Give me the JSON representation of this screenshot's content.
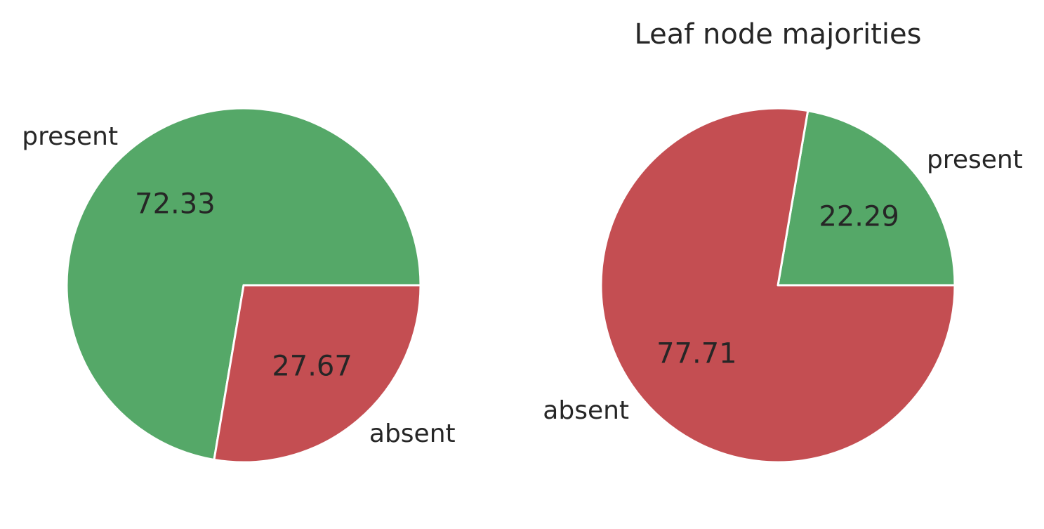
{
  "chart_data": [
    {
      "type": "pie",
      "title": "",
      "categories": [
        "present",
        "absent"
      ],
      "values": [
        72.33,
        27.67
      ],
      "value_labels": [
        "72.33",
        "27.67"
      ],
      "colors": [
        "#55a868",
        "#c44e52"
      ]
    },
    {
      "type": "pie",
      "title": "Leaf node majorities",
      "categories": [
        "present",
        "absent"
      ],
      "values": [
        22.29,
        77.71
      ],
      "value_labels": [
        "22.29",
        "77.71"
      ],
      "colors": [
        "#55a868",
        "#c44e52"
      ]
    }
  ]
}
